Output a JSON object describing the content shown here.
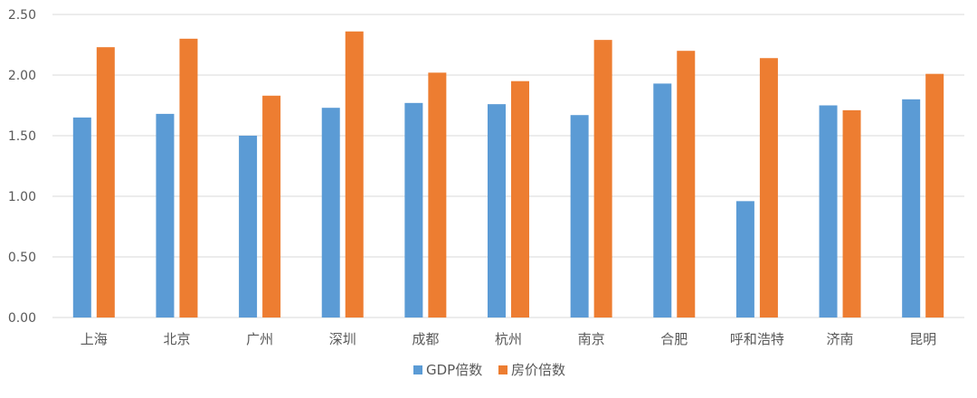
{
  "chart_data": {
    "type": "bar",
    "categories": [
      "上海",
      "北京",
      "广州",
      "深圳",
      "成都",
      "杭州",
      "南京",
      "合肥",
      "呼和浩特",
      "济南",
      "昆明"
    ],
    "series": [
      {
        "name": "GDP倍数",
        "color": "#5B9BD5",
        "values": [
          1.65,
          1.68,
          1.5,
          1.73,
          1.77,
          1.76,
          1.67,
          1.93,
          0.96,
          1.75,
          1.8
        ]
      },
      {
        "name": "房价倍数",
        "color": "#ED7D31",
        "values": [
          2.23,
          2.3,
          1.83,
          2.36,
          2.02,
          1.95,
          2.29,
          2.2,
          2.14,
          1.71,
          2.01
        ]
      }
    ],
    "yticks": [
      "0.00",
      "0.50",
      "1.00",
      "1.50",
      "2.00",
      "2.50"
    ],
    "ylim": [
      0,
      2.5
    ],
    "grid": true,
    "legend_position": "bottom-center",
    "xlabel": "",
    "ylabel": "",
    "title": ""
  }
}
